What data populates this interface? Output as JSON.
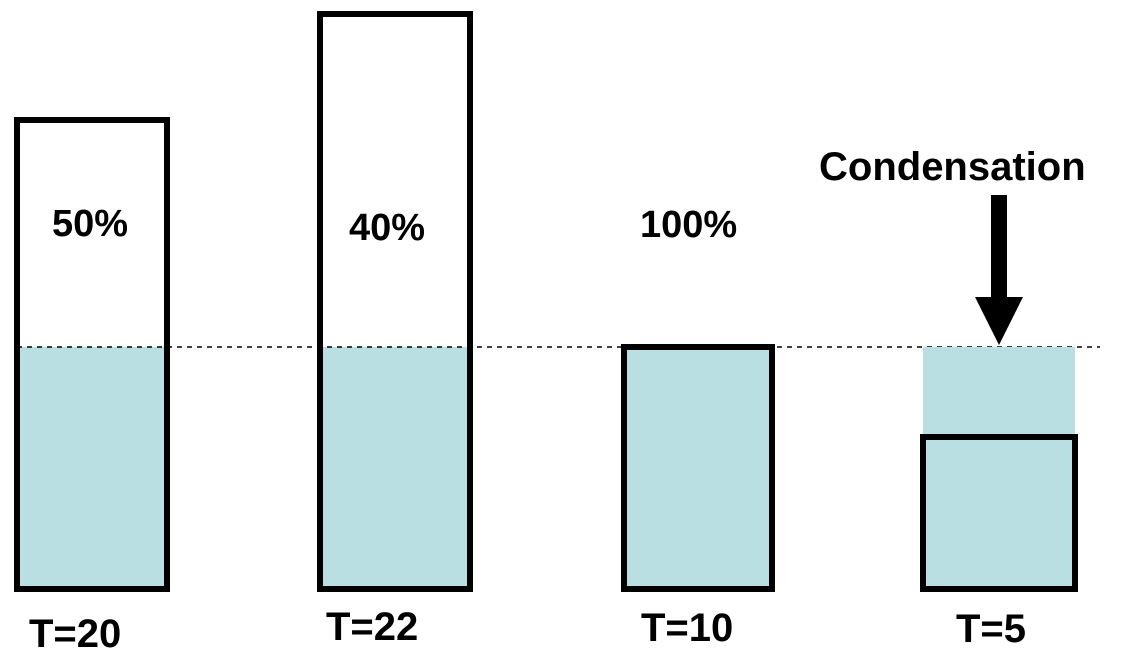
{
  "colors": {
    "water": "#b9dfe2",
    "outline": "#000000",
    "background": "#ffffff"
  },
  "containers": [
    {
      "humidity_label": "50%",
      "temperature_label": "T=20"
    },
    {
      "humidity_label": "40%",
      "temperature_label": "T=22"
    },
    {
      "humidity_label": "100%",
      "temperature_label": "T=10"
    },
    {
      "humidity_label": "",
      "temperature_label": "T=5"
    }
  ],
  "annotation": {
    "label": "Condensation",
    "icon": "arrow-down-icon"
  }
}
